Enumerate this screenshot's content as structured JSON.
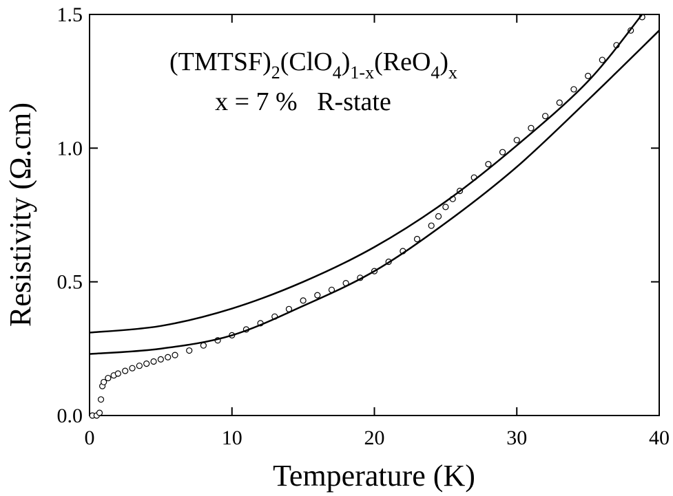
{
  "chart_data": {
    "type": "scatter",
    "title_parts": [
      {
        "text": "(TMTSF)",
        "sub": false
      },
      {
        "text": "2",
        "sub": true
      },
      {
        "text": "(ClO",
        "sub": false
      },
      {
        "text": "4",
        "sub": true
      },
      {
        "text": ")",
        "sub": false
      },
      {
        "text": "1-x",
        "sub": true
      },
      {
        "text": "(ReO",
        "sub": false
      },
      {
        "text": "4",
        "sub": true
      },
      {
        "text": ")",
        "sub": false
      },
      {
        "text": "x",
        "sub": true
      }
    ],
    "subtitle": "x = 7 %   R-state",
    "x_label": "Temperature (K)",
    "y_label": "Resistivity (Ω.cm)",
    "xlim": [
      0,
      40
    ],
    "ylim": [
      0,
      1.5
    ],
    "xticks": [
      0,
      10,
      20,
      30,
      40
    ],
    "yticks": [
      {
        "value": 0,
        "label": "0.0"
      },
      {
        "value": 0.5,
        "label": "0.5"
      },
      {
        "value": 1,
        "label": "1.0"
      },
      {
        "value": 1.5,
        "label": "1.5"
      }
    ],
    "series": [
      {
        "kind": "points",
        "color": "#000000",
        "x": [
          0.2,
          0.5,
          0.7,
          0.8,
          0.9,
          1.0,
          1.3,
          1.7,
          2.0,
          2.5,
          3,
          3.5,
          4,
          4.5,
          5,
          5.5,
          6,
          7,
          8,
          9,
          10,
          11,
          12,
          13,
          14,
          15,
          16,
          17,
          18,
          19,
          20,
          21,
          22,
          23,
          24,
          24.5,
          25,
          25.5,
          26,
          27,
          28,
          29,
          30,
          31,
          32,
          33,
          34,
          35,
          36,
          37,
          38,
          38.8
        ],
        "values": [
          0.0,
          0.0,
          0.01,
          0.06,
          0.11,
          0.125,
          0.14,
          0.15,
          0.157,
          0.167,
          0.177,
          0.186,
          0.194,
          0.202,
          0.21,
          0.218,
          0.226,
          0.243,
          0.262,
          0.281,
          0.3,
          0.322,
          0.345,
          0.37,
          0.398,
          0.43,
          0.45,
          0.47,
          0.495,
          0.515,
          0.54,
          0.575,
          0.615,
          0.66,
          0.71,
          0.745,
          0.78,
          0.81,
          0.84,
          0.89,
          0.94,
          0.985,
          1.03,
          1.075,
          1.12,
          1.17,
          1.22,
          1.27,
          1.33,
          1.385,
          1.44,
          1.49
        ]
      },
      {
        "kind": "line",
        "color": "#000000",
        "x": [
          0,
          5,
          10,
          15,
          20,
          25,
          30,
          35,
          38.8
        ],
        "values": [
          0.31,
          0.335,
          0.4,
          0.5,
          0.63,
          0.8,
          1.01,
          1.25,
          1.5
        ]
      },
      {
        "kind": "line",
        "color": "#000000",
        "x": [
          0,
          5,
          10,
          15,
          20,
          25,
          30,
          35,
          40
        ],
        "values": [
          0.23,
          0.25,
          0.3,
          0.41,
          0.54,
          0.72,
          0.93,
          1.18,
          1.44
        ]
      }
    ]
  }
}
